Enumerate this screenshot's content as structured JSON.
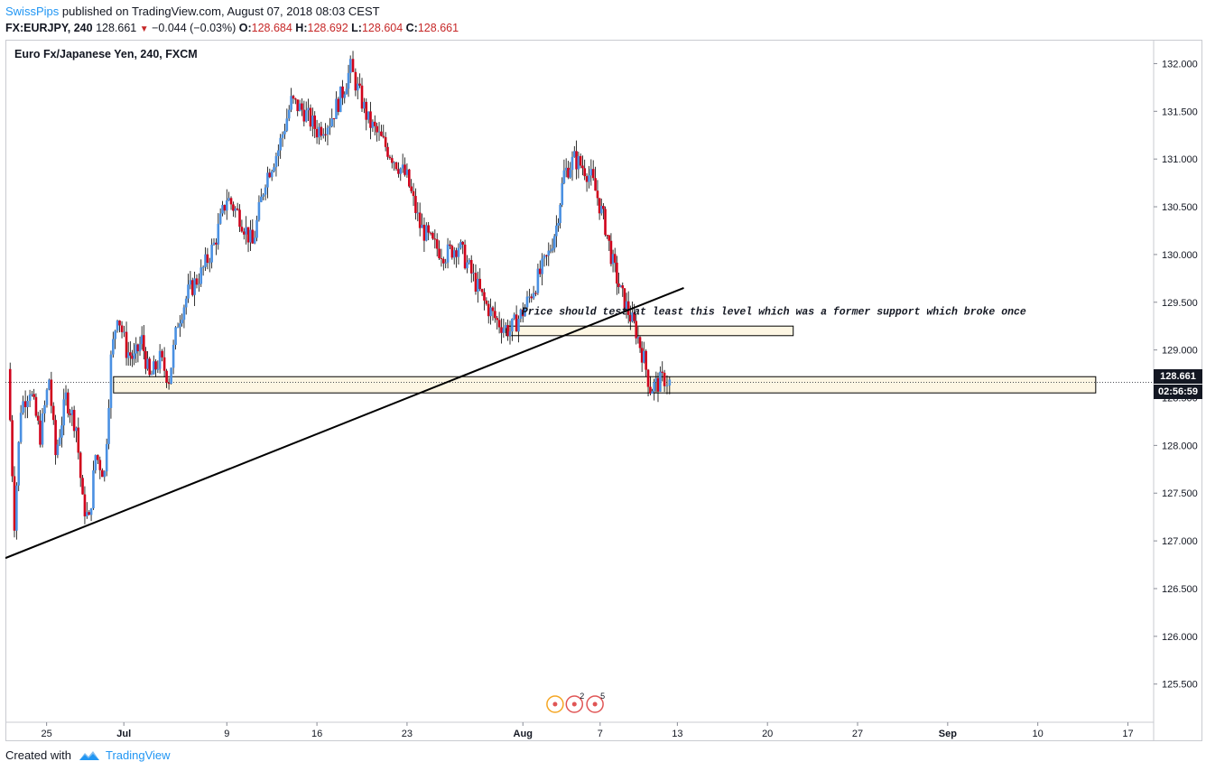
{
  "header": {
    "user": "SwissPips",
    "published": "published on TradingView.com, August 07, 2018 08:03 CEST"
  },
  "quote": {
    "symbol": "FX:EURJPY, 240",
    "last": "128.661",
    "change": "−0.044 (−0.03%)",
    "open_label": "O:",
    "open": "128.684",
    "high_label": "H:",
    "high": "128.692",
    "low_label": "L:",
    "low": "128.604",
    "close_label": "C:",
    "close": "128.661"
  },
  "legend": "Euro Fx/Japanese Yen, 240, FXCM",
  "price_tag": {
    "price": "128.661",
    "countdown": "02:56:59"
  },
  "footer": {
    "created_with": "Created with",
    "brand": "TradingView"
  },
  "colors": {
    "up": "#4a90e2",
    "down": "#d0021b",
    "zone_fill": "#fdf6e3",
    "trend": "#000000",
    "accent": "#2196f3"
  },
  "chart_data": {
    "type": "candlestick",
    "title": "Euro Fx/Japanese Yen, 240, FXCM",
    "symbol": "FX:EURJPY",
    "timeframe": "240",
    "ylim": [
      125.1,
      132.25
    ],
    "y_ticks": [
      "125.500",
      "126.000",
      "126.500",
      "127.000",
      "127.500",
      "128.000",
      "128.500",
      "129.000",
      "129.500",
      "130.000",
      "130.500",
      "131.000",
      "131.500",
      "132.000"
    ],
    "x_ticks": [
      {
        "label": "25",
        "day": 0
      },
      {
        "label": "Jul",
        "day": 6
      },
      {
        "label": "9",
        "day": 14
      },
      {
        "label": "16",
        "day": 21
      },
      {
        "label": "23",
        "day": 28
      },
      {
        "label": "Aug",
        "day": 37
      },
      {
        "label": "7",
        "day": 43
      },
      {
        "label": "13",
        "day": 49
      },
      {
        "label": "20",
        "day": 56
      },
      {
        "label": "27",
        "day": 63
      },
      {
        "label": "Sep",
        "day": 70
      },
      {
        "label": "10",
        "day": 77
      },
      {
        "label": "17",
        "day": 84
      }
    ],
    "x_range_days": [
      -3.2,
      86
    ],
    "close_path": [
      [
        -3,
        128.8
      ],
      [
        -2.5,
        127.2
      ],
      [
        -2,
        128.4
      ],
      [
        -1.3,
        128.6
      ],
      [
        -0.5,
        128.1
      ],
      [
        0.2,
        128.7
      ],
      [
        0.7,
        127.9
      ],
      [
        1.5,
        128.5
      ],
      [
        2.3,
        128.2
      ],
      [
        2.8,
        127.4
      ],
      [
        3.3,
        127.2
      ],
      [
        3.8,
        127.9
      ],
      [
        4.5,
        127.7
      ],
      [
        5.0,
        128.9
      ],
      [
        5.5,
        129.4
      ],
      [
        6.2,
        129.0
      ],
      [
        6.8,
        128.9
      ],
      [
        7.4,
        129.1
      ],
      [
        8.0,
        128.7
      ],
      [
        8.8,
        128.9
      ],
      [
        9.5,
        128.7
      ],
      [
        10.2,
        129.3
      ],
      [
        11,
        129.6
      ],
      [
        12,
        129.8
      ],
      [
        13,
        130.1
      ],
      [
        14,
        130.6
      ],
      [
        15,
        130.4
      ],
      [
        16,
        130.1
      ],
      [
        17,
        130.8
      ],
      [
        18,
        131.1
      ],
      [
        19,
        131.6
      ],
      [
        20,
        131.5
      ],
      [
        21,
        131.3
      ],
      [
        22,
        131.4
      ],
      [
        23,
        131.7
      ],
      [
        23.6,
        131.95
      ],
      [
        24,
        131.8
      ],
      [
        24.5,
        131.6
      ],
      [
        25,
        131.4
      ],
      [
        26,
        131.2
      ],
      [
        27,
        131.0
      ],
      [
        28,
        130.8
      ],
      [
        29,
        130.3
      ],
      [
        30,
        130.1
      ],
      [
        31,
        130.0
      ],
      [
        32,
        130.1
      ],
      [
        33,
        129.8
      ],
      [
        34,
        129.5
      ],
      [
        35,
        129.3
      ],
      [
        36,
        129.2
      ],
      [
        37,
        129.4
      ],
      [
        38,
        129.7
      ],
      [
        39,
        130.0
      ],
      [
        39.6,
        130.3
      ],
      [
        40.2,
        130.85
      ],
      [
        41,
        131.0
      ],
      [
        41.8,
        130.9
      ],
      [
        42.3,
        130.8
      ],
      [
        42.8,
        130.6
      ],
      [
        43.4,
        130.3
      ],
      [
        44,
        129.9
      ],
      [
        44.6,
        129.6
      ],
      [
        45.2,
        129.4
      ],
      [
        45.8,
        129.2
      ],
      [
        46.4,
        128.9
      ],
      [
        46.9,
        128.6
      ],
      [
        47.5,
        128.65
      ],
      [
        48,
        128.7
      ],
      [
        48.4,
        128.661
      ]
    ],
    "zones": [
      {
        "name": "former-support-zone",
        "y_low": 129.15,
        "y_high": 129.25,
        "x_from_day": 35.7,
        "x_to_day": 58
      },
      {
        "name": "current-support-zone",
        "y_low": 128.55,
        "y_high": 128.72,
        "x_from_day": 5.2,
        "x_to_day": 81.5
      }
    ],
    "trendline": {
      "from": {
        "day": -3.2,
        "price": 126.82
      },
      "to": {
        "day": 49.5,
        "price": 129.65
      }
    },
    "annotation": "Price should test at least this level which was a former support which broke once",
    "last_price": 128.661
  }
}
